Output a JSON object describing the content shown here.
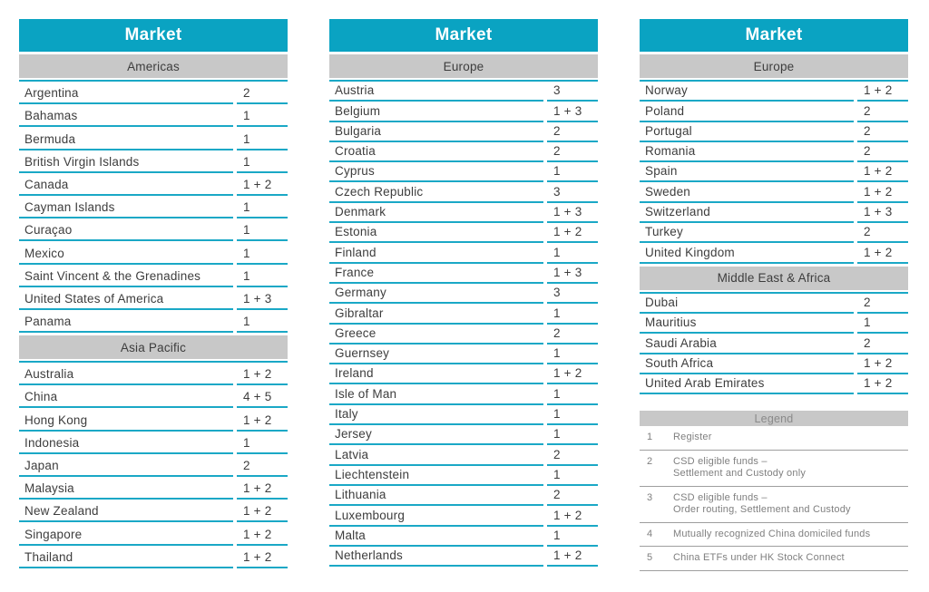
{
  "colors": {
    "teal_header": "#0aa3c2",
    "teal_rule": "#1aa8c6",
    "band_gray": "#c8c8c8",
    "text_dark": "#3d3d3d",
    "legend_gray": "#8a8a8a",
    "legend_text_gray": "#7f7f7f",
    "legend_divider_gray": "#9e9e9e"
  },
  "tables": [
    {
      "title": "Market",
      "sections": [
        {
          "name": "Americas",
          "rows": [
            {
              "market": "Argentina",
              "services": "2"
            },
            {
              "market": "Bahamas",
              "services": "1"
            },
            {
              "market": "Bermuda",
              "services": "1"
            },
            {
              "market": "British Virgin Islands",
              "services": "1"
            },
            {
              "market": "Canada",
              "services": "1 + 2"
            },
            {
              "market": "Cayman Islands",
              "services": "1"
            },
            {
              "market": "Curaçao",
              "services": "1"
            },
            {
              "market": "Mexico",
              "services": "1"
            },
            {
              "market": "Saint Vincent & the Grenadines",
              "services": "1"
            },
            {
              "market": "United States of America",
              "services": "1 + 3"
            },
            {
              "market": "Panama",
              "services": "1"
            }
          ]
        },
        {
          "name": "Asia Pacific",
          "rows": [
            {
              "market": "Australia",
              "services": "1 + 2"
            },
            {
              "market": "China",
              "services": "4 + 5"
            },
            {
              "market": "Hong Kong",
              "services": "1 + 2"
            },
            {
              "market": "Indonesia",
              "services": "1"
            },
            {
              "market": "Japan",
              "services": "2"
            },
            {
              "market": "Malaysia",
              "services": "1 + 2"
            },
            {
              "market": "New Zealand",
              "services": "1 + 2"
            },
            {
              "market": "Singapore",
              "services": "1 + 2"
            },
            {
              "market": "Thailand",
              "services": "1 + 2"
            }
          ]
        }
      ]
    },
    {
      "title": "Market",
      "sections": [
        {
          "name": "Europe",
          "rows": [
            {
              "market": "Austria",
              "services": "3"
            },
            {
              "market": "Belgium",
              "services": "1 + 3"
            },
            {
              "market": "Bulgaria",
              "services": "2"
            },
            {
              "market": "Croatia",
              "services": "2"
            },
            {
              "market": "Cyprus",
              "services": "1"
            },
            {
              "market": "Czech Republic",
              "services": "3"
            },
            {
              "market": "Denmark",
              "services": "1 + 3"
            },
            {
              "market": "Estonia",
              "services": "1 + 2"
            },
            {
              "market": "Finland",
              "services": "1"
            },
            {
              "market": "France",
              "services": "1 + 3"
            },
            {
              "market": "Germany",
              "services": "3"
            },
            {
              "market": "Gibraltar",
              "services": "1"
            },
            {
              "market": "Greece",
              "services": "2"
            },
            {
              "market": "Guernsey",
              "services": "1"
            },
            {
              "market": "Ireland",
              "services": "1 + 2"
            },
            {
              "market": "Isle of Man",
              "services": "1"
            },
            {
              "market": "Italy",
              "services": "1"
            },
            {
              "market": "Jersey",
              "services": "1"
            },
            {
              "market": "Latvia",
              "services": "2"
            },
            {
              "market": "Liechtenstein",
              "services": "1"
            },
            {
              "market": "Lithuania",
              "services": "2"
            },
            {
              "market": "Luxembourg",
              "services": "1 + 2"
            },
            {
              "market": "Malta",
              "services": "1"
            },
            {
              "market": "Netherlands",
              "services": "1 + 2"
            }
          ]
        }
      ]
    },
    {
      "title": "Market",
      "sections": [
        {
          "name": "Europe",
          "rows": [
            {
              "market": "Norway",
              "services": "1 + 2"
            },
            {
              "market": "Poland",
              "services": "2"
            },
            {
              "market": "Portugal",
              "services": "2"
            },
            {
              "market": "Romania",
              "services": "2"
            },
            {
              "market": "Spain",
              "services": "1 + 2"
            },
            {
              "market": "Sweden",
              "services": "1 + 2"
            },
            {
              "market": "Switzerland",
              "services": "1 + 3"
            },
            {
              "market": "Turkey",
              "services": "2"
            },
            {
              "market": "United Kingdom",
              "services": "1 + 2"
            }
          ]
        },
        {
          "name": "Middle East & Africa",
          "rows": [
            {
              "market": "Dubai",
              "services": "2"
            },
            {
              "market": "Mauritius",
              "services": "1"
            },
            {
              "market": "Saudi Arabia",
              "services": "2"
            },
            {
              "market": "South Africa",
              "services": "1 + 2"
            },
            {
              "market": "United Arab Emirates",
              "services": "1 + 2"
            }
          ]
        }
      ]
    }
  ],
  "legend": {
    "title": "Legend",
    "items": [
      {
        "code": "1",
        "lines": [
          "Register"
        ]
      },
      {
        "code": "2",
        "lines": [
          "CSD eligible funds –",
          "Settlement and Custody only"
        ]
      },
      {
        "code": "3",
        "lines": [
          "CSD eligible funds –",
          "Order routing, Settlement and Custody"
        ]
      },
      {
        "code": "4",
        "lines": [
          "Mutually recognized China domiciled funds"
        ]
      },
      {
        "code": "5",
        "lines": [
          "China ETFs under HK Stock Connect"
        ]
      }
    ]
  }
}
